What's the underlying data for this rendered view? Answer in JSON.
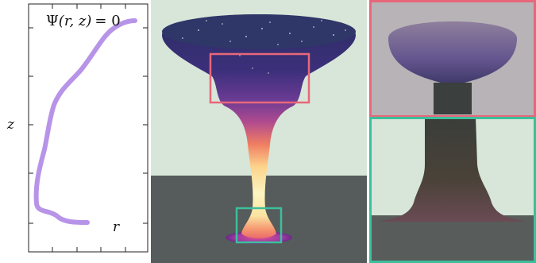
{
  "profile_plot": {
    "equation": {
      "symbol": "Ψ",
      "args": "(r, z)",
      "rhs": "= 0"
    },
    "x_axis_label": "r",
    "y_axis_label": "z",
    "curve_color": "#b794e8"
  },
  "render": {
    "background_color": "#d7e6d8",
    "floor_color": "#565b5b",
    "inset_top_frame_color": "#e8677a",
    "inset_bottom_frame_color": "#3cbf9c"
  },
  "closeups": {
    "top_frame_color": "#e8677a",
    "bottom_frame_color": "#3cbf9c"
  }
}
